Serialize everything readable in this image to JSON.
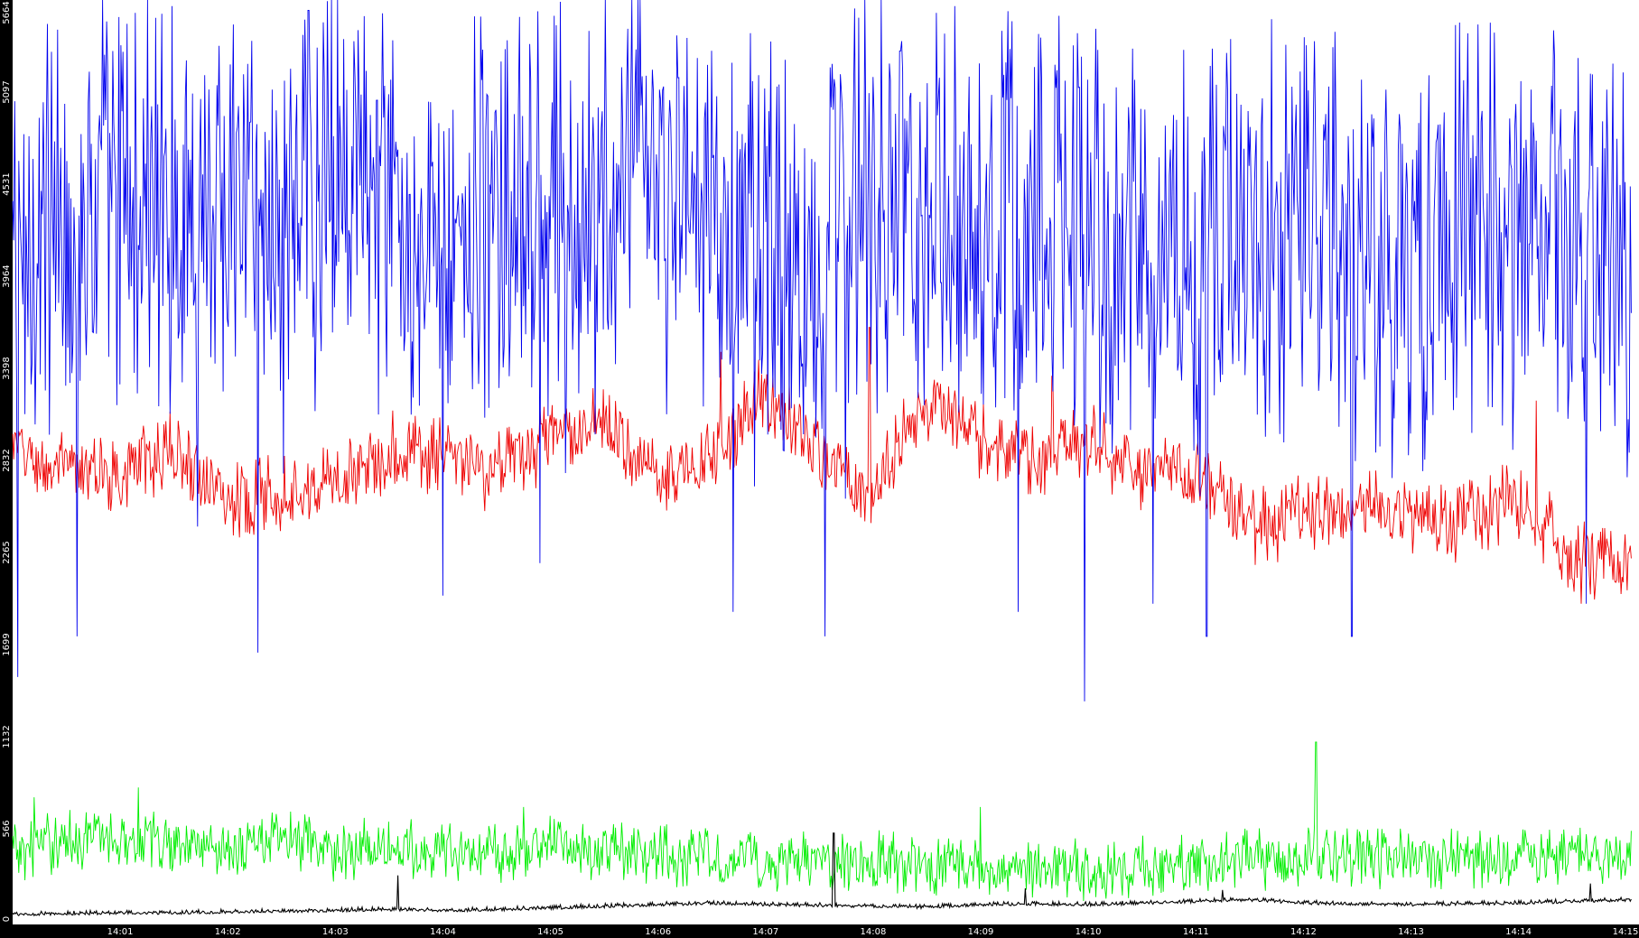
{
  "chart_data": {
    "type": "line",
    "title": "",
    "xlabel": "",
    "ylabel": "",
    "ylim": [
      0,
      5664
    ],
    "y_ticks": [
      "0",
      "566",
      "1132",
      "1699",
      "2265",
      "2832",
      "3398",
      "3964",
      "4531",
      "5097",
      "5664"
    ],
    "x_ticks": [
      "14:01",
      "14:02",
      "14:03",
      "14:04",
      "14:05",
      "14:06",
      "14:07",
      "14:08",
      "14:09",
      "14:10",
      "14:11",
      "14:12",
      "14:13",
      "14:14",
      "14:15"
    ],
    "x_range": [
      "14:00",
      "14:15"
    ],
    "grid": false,
    "legend": "none",
    "series": [
      {
        "color": "#0000ee",
        "stroke": "thin",
        "x": [
          "14:00",
          "14:00:30",
          "14:01",
          "14:01:30",
          "14:02",
          "14:02:30",
          "14:03",
          "14:03:30",
          "14:04",
          "14:04:30",
          "14:05",
          "14:05:30",
          "14:06",
          "14:06:30",
          "14:07",
          "14:07:30",
          "14:08",
          "14:08:30",
          "14:09",
          "14:09:30",
          "14:10",
          "14:10:30",
          "14:11",
          "14:11:30",
          "14:12",
          "14:12:30",
          "14:13",
          "14:13:30",
          "14:14",
          "14:14:30",
          "14:15"
        ],
        "values": [
          4100,
          4350,
          4450,
          4400,
          4500,
          4300,
          4500,
          4250,
          4450,
          4300,
          4350,
          4400,
          4450,
          4300,
          4100,
          4200,
          4400,
          4550,
          4300,
          4350,
          4200,
          4100,
          4150,
          4250,
          4200,
          4200,
          4100,
          4250,
          4150,
          4150,
          4000
        ],
        "typical_range": [
          2500,
          5300
        ],
        "dips": [
          {
            "x": "14:00:03",
            "value": 1500
          },
          {
            "x": "14:00:36",
            "value": 1750
          },
          {
            "x": "14:01:00",
            "value": 3300
          },
          {
            "x": "14:02:17",
            "value": 1650
          },
          {
            "x": "14:04:00",
            "value": 2000
          },
          {
            "x": "14:04:54",
            "value": 2200
          },
          {
            "x": "14:06:42",
            "value": 1900
          },
          {
            "x": "14:07:33",
            "value": 1750
          },
          {
            "x": "14:09:21",
            "value": 1900
          },
          {
            "x": "14:09:58",
            "value": 1350
          },
          {
            "x": "14:10:36",
            "value": 1950
          },
          {
            "x": "14:11:06",
            "value": 1750
          },
          {
            "x": "14:12:27",
            "value": 1750
          },
          {
            "x": "14:14:38",
            "value": 1950
          }
        ],
        "peaks": [
          {
            "x": "14:00:50",
            "value": 5664
          },
          {
            "x": "14:02:45",
            "value": 5600
          },
          {
            "x": "14:08:15",
            "value": 5350
          },
          {
            "x": "14:14:20",
            "value": 5300
          }
        ]
      },
      {
        "color": "#ee0000",
        "stroke": "thin",
        "x": [
          "14:00",
          "14:00:30",
          "14:01",
          "14:01:30",
          "14:02",
          "14:02:30",
          "14:03",
          "14:03:30",
          "14:04",
          "14:04:30",
          "14:05",
          "14:05:30",
          "14:06",
          "14:06:30",
          "14:07",
          "14:07:30",
          "14:08",
          "14:08:30",
          "14:09",
          "14:09:30",
          "14:10",
          "14:10:30",
          "14:11",
          "14:11:30",
          "14:12",
          "14:12:30",
          "14:13",
          "14:13:30",
          "14:14",
          "14:14:30",
          "14:15"
        ],
        "values": [
          2900,
          2750,
          2750,
          2900,
          2600,
          2650,
          2700,
          2900,
          2850,
          2750,
          2950,
          3050,
          2750,
          2850,
          3250,
          2850,
          2650,
          3200,
          2950,
          2800,
          2950,
          2750,
          2800,
          2400,
          2500,
          2550,
          2500,
          2450,
          2600,
          2250,
          2200
        ],
        "typical_range": [
          2300,
          3300
        ],
        "peaks": [
          {
            "x": "14:06:35",
            "value": 3500
          },
          {
            "x": "14:07:58",
            "value": 3650
          },
          {
            "x": "14:09:40",
            "value": 3350
          },
          {
            "x": "14:14:10",
            "value": 3200
          }
        ],
        "dips": [
          {
            "x": "14:14:35",
            "value": 1950
          }
        ]
      },
      {
        "color": "#00ee00",
        "stroke": "thin",
        "x": [
          "14:00",
          "14:00:30",
          "14:01",
          "14:01:30",
          "14:02",
          "14:02:30",
          "14:03",
          "14:03:30",
          "14:04",
          "14:04:30",
          "14:05",
          "14:05:30",
          "14:06",
          "14:06:30",
          "14:07",
          "14:07:30",
          "14:08",
          "14:08:30",
          "14:09",
          "14:09:30",
          "14:10",
          "14:10:30",
          "14:11",
          "14:11:30",
          "14:12",
          "14:12:30",
          "14:13",
          "14:13:30",
          "14:14",
          "14:14:30",
          "14:15"
        ],
        "values": [
          420,
          500,
          520,
          480,
          460,
          500,
          430,
          450,
          440,
          420,
          470,
          420,
          400,
          380,
          360,
          350,
          360,
          340,
          330,
          320,
          300,
          330,
          360,
          380,
          400,
          390,
          380,
          370,
          390,
          400,
          410
        ],
        "typical_range": [
          150,
          720
        ],
        "peaks": [
          {
            "x": "14:00:12",
            "value": 760
          },
          {
            "x": "14:01:10",
            "value": 820
          },
          {
            "x": "14:04:45",
            "value": 700
          },
          {
            "x": "14:09:00",
            "value": 700
          },
          {
            "x": "14:12:07",
            "value": 1100
          }
        ]
      },
      {
        "color": "#000000",
        "stroke": "thin",
        "x": [
          "14:00",
          "14:00:30",
          "14:01",
          "14:01:30",
          "14:02",
          "14:02:30",
          "14:03",
          "14:03:30",
          "14:04",
          "14:04:30",
          "14:05",
          "14:05:30",
          "14:06",
          "14:06:30",
          "14:07",
          "14:07:30",
          "14:08",
          "14:08:30",
          "14:09",
          "14:09:30",
          "14:10",
          "14:10:30",
          "14:11",
          "14:11:30",
          "14:12",
          "14:12:30",
          "14:13",
          "14:13:30",
          "14:14",
          "14:14:30",
          "14:15"
        ],
        "values": [
          30,
          35,
          40,
          40,
          45,
          50,
          55,
          60,
          55,
          60,
          70,
          80,
          90,
          100,
          90,
          85,
          80,
          75,
          90,
          95,
          90,
          100,
          110,
          120,
          100,
          95,
          90,
          95,
          100,
          110,
          120
        ],
        "typical_range": [
          0,
          200
        ],
        "peaks": [
          {
            "x": "14:03:35",
            "value": 280
          },
          {
            "x": "14:07:38",
            "value": 540
          },
          {
            "x": "14:09:25",
            "value": 200
          },
          {
            "x": "14:11:15",
            "value": 190
          },
          {
            "x": "14:14:40",
            "value": 230
          }
        ]
      }
    ]
  }
}
